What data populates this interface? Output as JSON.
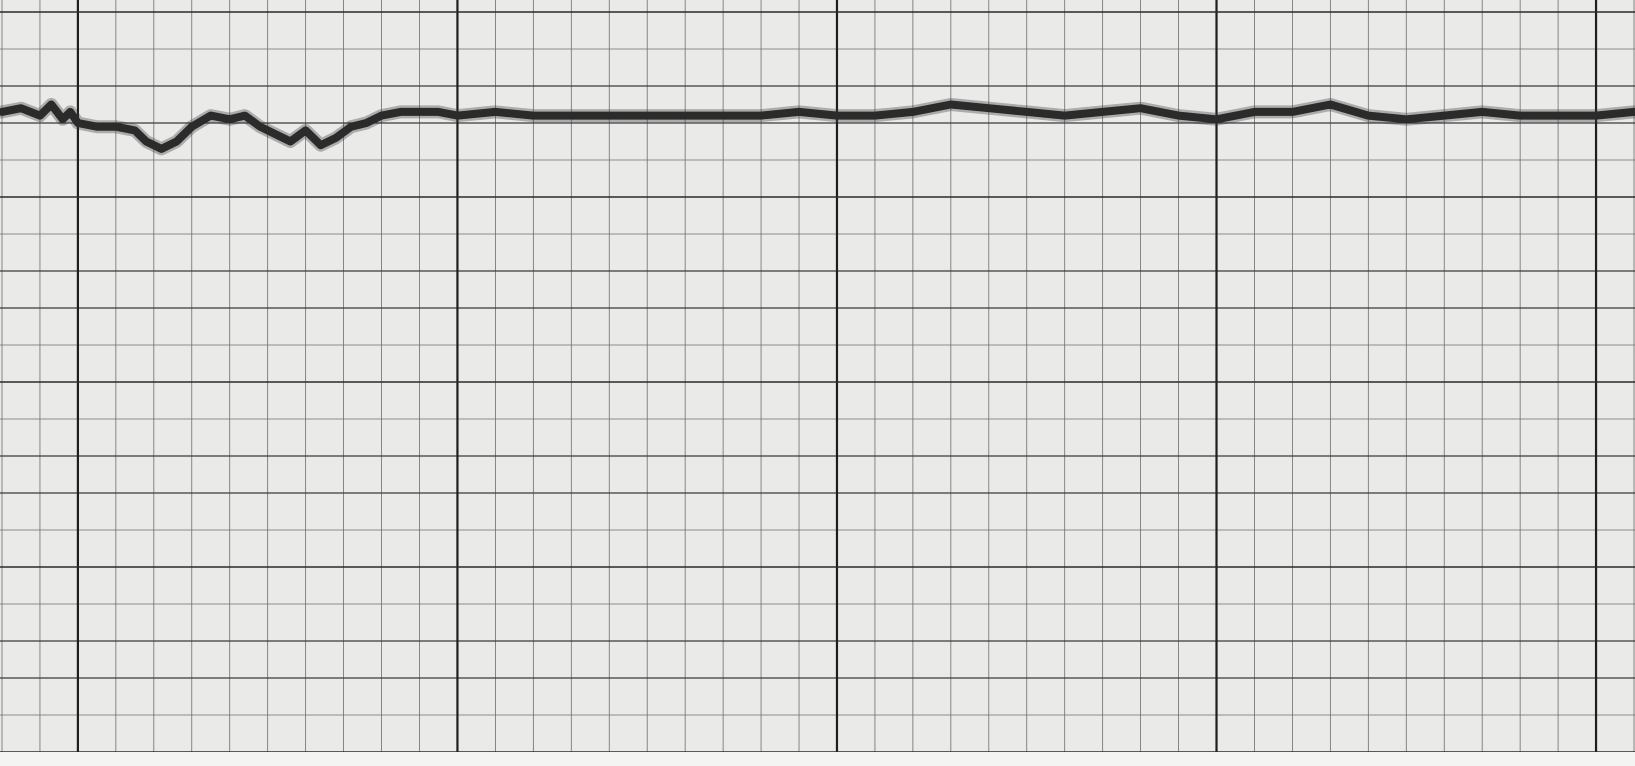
{
  "chart_data": {
    "type": "line",
    "grid": "on",
    "grid_minor_per_major_x": 10,
    "grid_minor_per_major_y": 5,
    "colors": {
      "paper": "#eaeae8",
      "grid": "#6d6d6d",
      "grid_major": "#1e1e1e",
      "trace": "#2b2b2b"
    },
    "xlim": [
      0,
      43
    ],
    "ylim": [
      0,
      20
    ],
    "series": [
      {
        "x": [
          0,
          0.5,
          1.0,
          1.3,
          1.6,
          1.8,
          2.0,
          2.5,
          3.0,
          3.5,
          3.8,
          4.2,
          4.6,
          5.0,
          5.5,
          6.0,
          6.4,
          6.8,
          7.2,
          7.6,
          8.0,
          8.4,
          8.8,
          9.2,
          9.6,
          10.0,
          10.5,
          11.0,
          11.5,
          12.0,
          13.0,
          14.0,
          15.0,
          16.0,
          17.0,
          18.0,
          19.0,
          20.0,
          21.0,
          22.0,
          23.0,
          24.0,
          25.0,
          26.0,
          27.0,
          28.0,
          29.0,
          30.0,
          31.0,
          32.0,
          33.0,
          34.0,
          35.0,
          36.0,
          37.0,
          38.0,
          39.0,
          40.0,
          41.0,
          42.0,
          43.0
        ],
        "y": [
          17.3,
          17.4,
          17.2,
          17.5,
          17.1,
          17.3,
          17.0,
          16.9,
          16.9,
          16.8,
          16.5,
          16.3,
          16.5,
          16.9,
          17.2,
          17.1,
          17.2,
          16.9,
          16.7,
          16.5,
          16.8,
          16.4,
          16.6,
          16.9,
          17.0,
          17.2,
          17.3,
          17.3,
          17.3,
          17.2,
          17.3,
          17.2,
          17.2,
          17.2,
          17.2,
          17.2,
          17.2,
          17.2,
          17.3,
          17.2,
          17.2,
          17.3,
          17.5,
          17.4,
          17.3,
          17.2,
          17.3,
          17.4,
          17.2,
          17.1,
          17.3,
          17.3,
          17.5,
          17.2,
          17.1,
          17.2,
          17.3,
          17.2,
          17.2,
          17.2,
          17.3
        ]
      }
    ]
  }
}
